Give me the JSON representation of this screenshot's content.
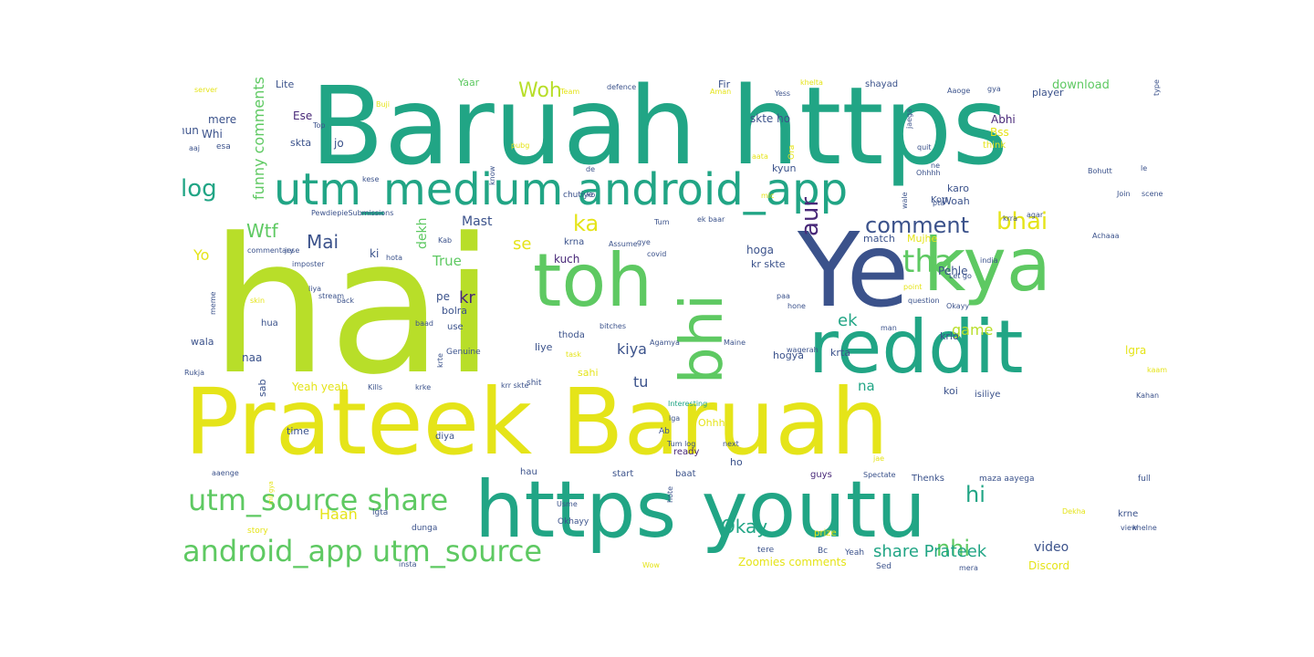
{
  "colors": {
    "yellow": "#e5e419",
    "lime": "#b8de29",
    "green": "#5ec962",
    "teal": "#21a585",
    "sea": "#2a9d8f",
    "navy": "#3b528b",
    "purple": "#482878"
  },
  "words": [
    {
      "text": "Baruah https",
      "color": "teal"
    },
    {
      "text": "hai",
      "color": "lime"
    },
    {
      "text": "Prateek Baruah",
      "color": "yellow"
    },
    {
      "text": "https youtu",
      "color": "teal"
    },
    {
      "text": "Ye",
      "color": "navy"
    },
    {
      "text": "kya",
      "color": "green"
    },
    {
      "text": "toh",
      "color": "green"
    },
    {
      "text": "reddit",
      "color": "teal"
    },
    {
      "text": "bhi",
      "color": "green"
    },
    {
      "text": "utm_medium android_app",
      "color": "teal"
    },
    {
      "text": "utm_source share",
      "color": "green"
    },
    {
      "text": "android_app utm_source",
      "color": "green"
    },
    {
      "text": "tha",
      "color": "green"
    },
    {
      "text": "bhai",
      "color": "yellow"
    },
    {
      "text": "aur",
      "color": "purple"
    },
    {
      "text": "comment",
      "color": "navy"
    },
    {
      "text": "log",
      "color": "teal"
    },
    {
      "text": "Woh",
      "color": "lime"
    },
    {
      "text": "ka",
      "color": "yellow"
    },
    {
      "text": "Mai",
      "color": "navy"
    },
    {
      "text": "Wtf",
      "color": "green"
    },
    {
      "text": "nhi",
      "color": "green"
    },
    {
      "text": "hi",
      "color": "teal"
    },
    {
      "text": "Okay",
      "color": "teal"
    },
    {
      "text": "share Prateek",
      "color": "teal"
    },
    {
      "text": "funny comments",
      "color": "green"
    },
    {
      "text": "ek",
      "color": "teal"
    },
    {
      "text": "kiya",
      "color": "navy"
    },
    {
      "text": "game",
      "color": "lime"
    },
    {
      "text": "video",
      "color": "navy"
    },
    {
      "text": "Haan",
      "color": "yellow"
    },
    {
      "text": "se",
      "color": "yellow"
    },
    {
      "text": "kr",
      "color": "purple"
    },
    {
      "text": "Yo",
      "color": "yellow"
    },
    {
      "text": "Mast",
      "color": "navy"
    },
    {
      "text": "True",
      "color": "green"
    },
    {
      "text": "tu",
      "color": "navy"
    },
    {
      "text": "na",
      "color": "teal"
    },
    {
      "text": "dekh",
      "color": "green"
    },
    {
      "text": "download",
      "color": "green"
    },
    {
      "text": "Discord",
      "color": "yellow"
    },
    {
      "text": "Zoomies comments",
      "color": "yellow"
    },
    {
      "text": "Yeah yeah",
      "color": "yellow"
    },
    {
      "text": "Ese",
      "color": "purple"
    },
    {
      "text": "Abhi",
      "color": "purple"
    },
    {
      "text": "skte ho",
      "color": "navy"
    },
    {
      "text": "mere",
      "color": "navy"
    },
    {
      "text": "hun",
      "color": "navy"
    },
    {
      "text": "Whi",
      "color": "navy"
    },
    {
      "text": "skta",
      "color": "navy"
    },
    {
      "text": "jo",
      "color": "navy"
    },
    {
      "text": "Bss",
      "color": "yellow"
    },
    {
      "text": "think",
      "color": "yellow"
    },
    {
      "text": "Lite",
      "color": "navy"
    },
    {
      "text": "Yaar",
      "color": "green"
    },
    {
      "text": "Fir",
      "color": "navy"
    },
    {
      "text": "shayad",
      "color": "navy"
    },
    {
      "text": "player",
      "color": "navy"
    },
    {
      "text": "Woah",
      "color": "navy"
    },
    {
      "text": "karo",
      "color": "navy"
    },
    {
      "text": "Kon",
      "color": "navy"
    },
    {
      "text": "kyun",
      "color": "navy"
    },
    {
      "text": "hoga",
      "color": "navy"
    },
    {
      "text": "kr skte",
      "color": "navy"
    },
    {
      "text": "match",
      "color": "navy"
    },
    {
      "text": "Mujhe",
      "color": "yellow"
    },
    {
      "text": "Pehle",
      "color": "navy"
    },
    {
      "text": "krlo",
      "color": "navy"
    },
    {
      "text": "lgra",
      "color": "yellow"
    },
    {
      "text": "ki",
      "color": "navy"
    },
    {
      "text": "kuch",
      "color": "purple"
    },
    {
      "text": "krna",
      "color": "navy"
    },
    {
      "text": "pe",
      "color": "navy"
    },
    {
      "text": "bolra",
      "color": "navy"
    },
    {
      "text": "use",
      "color": "navy"
    },
    {
      "text": "liye",
      "color": "navy"
    },
    {
      "text": "thoda",
      "color": "navy"
    },
    {
      "text": "hogya",
      "color": "navy"
    },
    {
      "text": "krta",
      "color": "navy"
    },
    {
      "text": "wala",
      "color": "navy"
    },
    {
      "text": "naa",
      "color": "navy"
    },
    {
      "text": "hua",
      "color": "navy"
    },
    {
      "text": "sab",
      "color": "navy"
    },
    {
      "text": "time",
      "color": "navy"
    },
    {
      "text": "diya",
      "color": "navy"
    },
    {
      "text": "sahi",
      "color": "yellow"
    },
    {
      "text": "koi",
      "color": "navy"
    },
    {
      "text": "isiliye",
      "color": "navy"
    },
    {
      "text": "Ohhh",
      "color": "yellow"
    },
    {
      "text": "ho",
      "color": "navy"
    },
    {
      "text": "guys",
      "color": "purple"
    },
    {
      "text": "ready",
      "color": "purple"
    },
    {
      "text": "baat",
      "color": "navy"
    },
    {
      "text": "start",
      "color": "navy"
    },
    {
      "text": "krne",
      "color": "navy"
    },
    {
      "text": "Thenks",
      "color": "navy"
    },
    {
      "text": "maza aayega",
      "color": "navy"
    },
    {
      "text": "full",
      "color": "navy"
    },
    {
      "text": "hau",
      "color": "navy"
    },
    {
      "text": "lgta",
      "color": "navy"
    },
    {
      "text": "dunga",
      "color": "navy"
    },
    {
      "text": "Okhayy",
      "color": "navy"
    },
    {
      "text": "prize",
      "color": "yellow"
    },
    {
      "text": "Bc",
      "color": "navy"
    },
    {
      "text": "Yeah",
      "color": "navy"
    },
    {
      "text": "tere",
      "color": "navy"
    },
    {
      "text": "Sed",
      "color": "navy"
    },
    {
      "text": "mera",
      "color": "navy"
    },
    {
      "text": "view",
      "color": "navy"
    },
    {
      "text": "khelne",
      "color": "navy"
    },
    {
      "text": "Dekha",
      "color": "yellow"
    },
    {
      "text": "story",
      "color": "yellow"
    },
    {
      "text": "insta",
      "color": "navy"
    },
    {
      "text": "Wow",
      "color": "yellow"
    },
    {
      "text": "Usme",
      "color": "navy"
    },
    {
      "text": "aaenge",
      "color": "navy"
    },
    {
      "text": "Spectate",
      "color": "navy"
    },
    {
      "text": "jae",
      "color": "yellow"
    },
    {
      "text": "next",
      "color": "navy"
    },
    {
      "text": "Interesting",
      "color": "teal"
    },
    {
      "text": "lga",
      "color": "navy"
    },
    {
      "text": "Ab",
      "color": "navy"
    },
    {
      "text": "Tum log",
      "color": "navy"
    },
    {
      "text": "krke",
      "color": "navy"
    },
    {
      "text": "Kills",
      "color": "navy"
    },
    {
      "text": "krr skte",
      "color": "navy"
    },
    {
      "text": "shit",
      "color": "navy"
    },
    {
      "text": "Rukja",
      "color": "navy"
    },
    {
      "text": "Genuine",
      "color": "navy"
    },
    {
      "text": "task",
      "color": "yellow"
    },
    {
      "text": "Agamya",
      "color": "navy"
    },
    {
      "text": "bitches",
      "color": "navy"
    },
    {
      "text": "wagerah",
      "color": "navy"
    },
    {
      "text": "paa",
      "color": "navy"
    },
    {
      "text": "hone",
      "color": "navy"
    },
    {
      "text": "man",
      "color": "navy"
    },
    {
      "text": "kaam",
      "color": "yellow"
    },
    {
      "text": "Kahan",
      "color": "navy"
    },
    {
      "text": "point",
      "color": "yellow"
    },
    {
      "text": "question",
      "color": "navy"
    },
    {
      "text": "Okayy",
      "color": "navy"
    },
    {
      "text": "Let go",
      "color": "navy"
    },
    {
      "text": "india",
      "color": "navy"
    },
    {
      "text": "Maine",
      "color": "navy"
    },
    {
      "text": "baad",
      "color": "navy"
    },
    {
      "text": "liya",
      "color": "navy"
    },
    {
      "text": "back",
      "color": "navy"
    },
    {
      "text": "skin",
      "color": "yellow"
    },
    {
      "text": "stream",
      "color": "navy"
    },
    {
      "text": "hota",
      "color": "navy"
    },
    {
      "text": "imposter",
      "color": "navy"
    },
    {
      "text": "commentary",
      "color": "navy"
    },
    {
      "text": "jese",
      "color": "navy"
    },
    {
      "text": "Kab",
      "color": "navy"
    },
    {
      "text": "Assume",
      "color": "navy"
    },
    {
      "text": "gye",
      "color": "navy"
    },
    {
      "text": "covid",
      "color": "navy"
    },
    {
      "text": "Tum",
      "color": "navy"
    },
    {
      "text": "ek baar",
      "color": "navy"
    },
    {
      "text": "mic",
      "color": "yellow"
    },
    {
      "text": "PewdiepieSubmissions",
      "color": "navy"
    },
    {
      "text": "chutiye",
      "color": "navy"
    },
    {
      "text": "ko",
      "color": "navy"
    },
    {
      "text": "kese",
      "color": "navy"
    },
    {
      "text": "de",
      "color": "navy"
    },
    {
      "text": "pubg",
      "color": "yellow"
    },
    {
      "text": "aata",
      "color": "yellow"
    },
    {
      "text": "ne",
      "color": "navy"
    },
    {
      "text": "pta",
      "color": "navy"
    },
    {
      "text": "quit",
      "color": "navy"
    },
    {
      "text": "Ohhhh",
      "color": "navy"
    },
    {
      "text": "Bohutt",
      "color": "navy"
    },
    {
      "text": "le",
      "color": "navy"
    },
    {
      "text": "Join",
      "color": "navy"
    },
    {
      "text": "scene",
      "color": "navy"
    },
    {
      "text": "krra",
      "color": "navy"
    },
    {
      "text": "agar",
      "color": "navy"
    },
    {
      "text": "Achaaa",
      "color": "navy"
    },
    {
      "text": "gya",
      "color": "navy"
    },
    {
      "text": "Aaoge",
      "color": "navy"
    },
    {
      "text": "khelta",
      "color": "yellow"
    },
    {
      "text": "Yess",
      "color": "navy"
    },
    {
      "text": "Aman",
      "color": "yellow"
    },
    {
      "text": "defence",
      "color": "navy"
    },
    {
      "text": "Team",
      "color": "yellow"
    },
    {
      "text": "Buji",
      "color": "yellow"
    },
    {
      "text": "Top",
      "color": "navy"
    },
    {
      "text": "server",
      "color": "yellow"
    },
    {
      "text": "aaj",
      "color": "navy"
    },
    {
      "text": "esa",
      "color": "navy"
    },
    {
      "text": "type",
      "color": "navy"
    },
    {
      "text": "Ora",
      "color": "yellow"
    },
    {
      "text": "jaega",
      "color": "navy"
    },
    {
      "text": "wale",
      "color": "navy"
    },
    {
      "text": "know",
      "color": "navy"
    },
    {
      "text": "krte",
      "color": "navy"
    },
    {
      "text": "hote",
      "color": "navy"
    },
    {
      "text": "meme",
      "color": "navy"
    },
    {
      "text": "mil gya",
      "color": "yellow"
    },
    {
      "text": "us",
      "color": "navy"
    }
  ]
}
